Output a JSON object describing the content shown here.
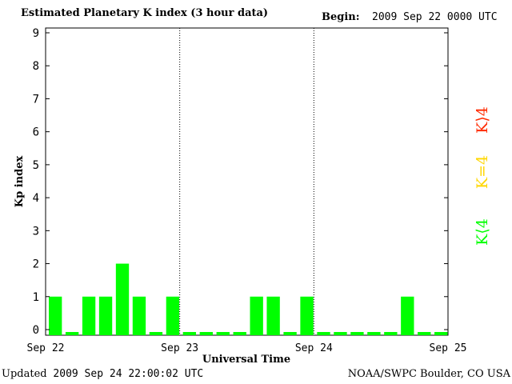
{
  "header": {
    "title": "Estimated Planetary K index (3 hour data)",
    "begin_label": "Begin:",
    "begin_value": "2009 Sep 22 0000 UTC"
  },
  "footer": {
    "updated_label": "Updated",
    "updated_value": "2009 Sep 24 22:00:02 UTC",
    "source": "NOAA/SWPC Boulder, CO USA"
  },
  "legend": [
    {
      "label": "K⟨4",
      "color": "#00ff00"
    },
    {
      "label": "K=4",
      "color": "#ffd700"
    },
    {
      "label": "K⟩4",
      "color": "#ff2a00"
    }
  ],
  "chart_data": {
    "type": "bar",
    "ylabel": "Kp index",
    "xlabel": "Universal Time",
    "ylim": [
      0,
      9
    ],
    "yticks": [
      "0",
      "1",
      "2",
      "3",
      "4",
      "5",
      "6",
      "7",
      "8",
      "9"
    ],
    "day_labels": [
      "Sep 22",
      "Sep 23",
      "Sep 24",
      "Sep 25"
    ],
    "bar_color": "#00ff00",
    "values": [
      1,
      0,
      1,
      1,
      2,
      1,
      0,
      1,
      0,
      0,
      0,
      0,
      1,
      1,
      0,
      1,
      0,
      0,
      0,
      0,
      0,
      1,
      0,
      0
    ]
  }
}
